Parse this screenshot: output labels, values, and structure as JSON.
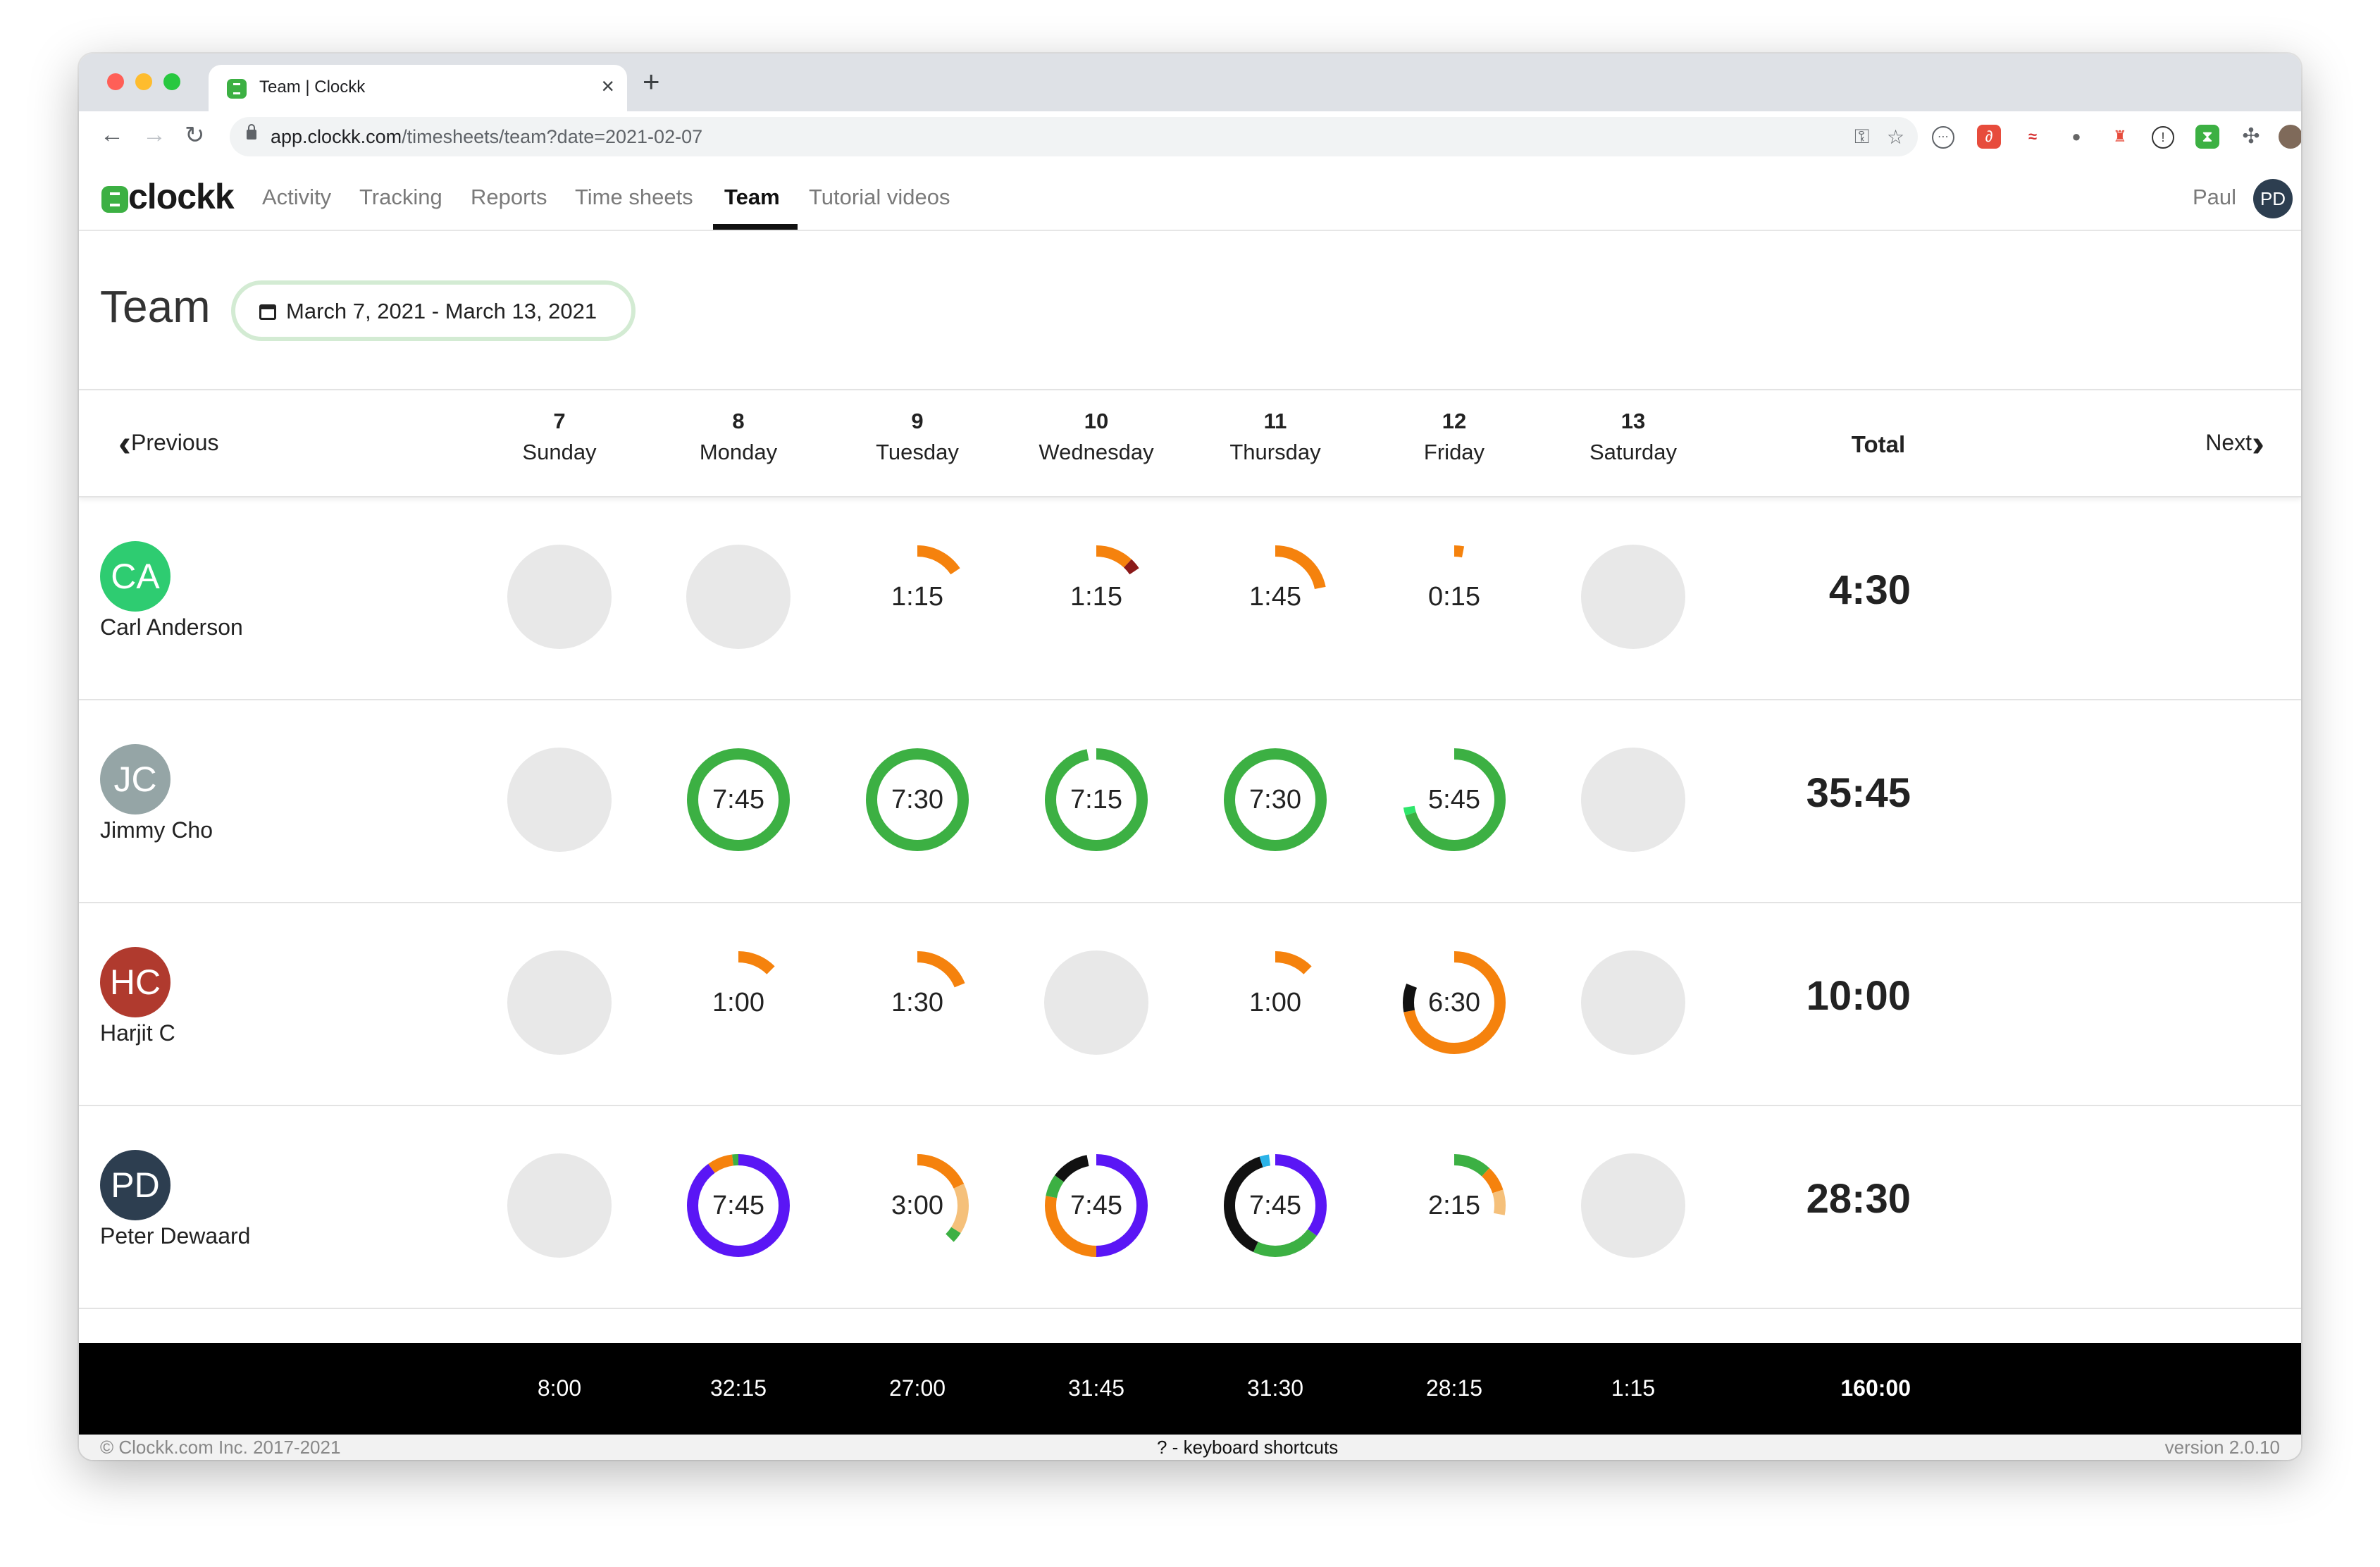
{
  "browser": {
    "tab_title": "Team | Clockk",
    "tab_close": "×",
    "new_tab": "+",
    "url_host": "app.clockk.com",
    "url_path": "/timesheets/team?date=2021-02-07"
  },
  "nav": {
    "logo_text": "clockk",
    "items": [
      "Activity",
      "Tracking",
      "Reports",
      "Time sheets",
      "Team",
      "Tutorial videos"
    ],
    "active": "Team",
    "user_name": "Paul",
    "user_initials": "PD"
  },
  "page": {
    "title": "Team",
    "date_range": "March 7, 2021 - March 13, 2021"
  },
  "days_header": {
    "prev": "Previous",
    "next": "Next",
    "total": "Total",
    "days": [
      {
        "num": "7",
        "name": "Sunday"
      },
      {
        "num": "8",
        "name": "Monday"
      },
      {
        "num": "9",
        "name": "Tuesday"
      },
      {
        "num": "10",
        "name": "Wednesday"
      },
      {
        "num": "11",
        "name": "Thursday"
      },
      {
        "num": "12",
        "name": "Friday"
      },
      {
        "num": "13",
        "name": "Saturday"
      }
    ]
  },
  "members": [
    {
      "initials": "CA",
      "name": "Carl Anderson",
      "avatar_color": "#2ecc71",
      "total": "4:30",
      "days": [
        {
          "label": "",
          "segments": []
        },
        {
          "label": "",
          "segments": []
        },
        {
          "label": "1:15",
          "segments": [
            {
              "color": "#f5820d",
              "fraction": 0.156
            }
          ]
        },
        {
          "label": "1:15",
          "segments": [
            {
              "color": "#f5820d",
              "fraction": 0.12
            },
            {
              "color": "#8b1a1a",
              "fraction": 0.036
            }
          ]
        },
        {
          "label": "1:45",
          "segments": [
            {
              "color": "#f5820d",
              "fraction": 0.219
            }
          ]
        },
        {
          "label": "0:15",
          "segments": [
            {
              "color": "#f5820d",
              "fraction": 0.031
            }
          ]
        },
        {
          "label": "",
          "segments": []
        }
      ]
    },
    {
      "initials": "JC",
      "name": "Jimmy Cho",
      "avatar_color": "#95a5a6",
      "total": "35:45",
      "days": [
        {
          "label": "",
          "segments": []
        },
        {
          "label": "7:45",
          "segments": [
            {
              "color": "#3cb043",
              "fraction": 1.0
            }
          ]
        },
        {
          "label": "7:30",
          "segments": [
            {
              "color": "#3cb043",
              "fraction": 1.0
            }
          ]
        },
        {
          "label": "7:15",
          "segments": [
            {
              "color": "#3cb043",
              "fraction": 0.97
            }
          ]
        },
        {
          "label": "7:30",
          "segments": [
            {
              "color": "#3cb043",
              "fraction": 1.0
            }
          ]
        },
        {
          "label": "5:45",
          "segments": [
            {
              "color": "#3cb043",
              "fraction": 0.7
            },
            {
              "color": "#2ee66b",
              "fraction": 0.025
            }
          ]
        },
        {
          "label": "",
          "segments": []
        }
      ]
    },
    {
      "initials": "HC",
      "name": "Harjit C",
      "avatar_color": "#b03a2e",
      "total": "10:00",
      "days": [
        {
          "label": "",
          "segments": []
        },
        {
          "label": "1:00",
          "segments": [
            {
              "color": "#f5820d",
              "fraction": 0.125
            }
          ]
        },
        {
          "label": "1:30",
          "segments": [
            {
              "color": "#f5820d",
              "fraction": 0.188
            }
          ]
        },
        {
          "label": "",
          "segments": []
        },
        {
          "label": "1:00",
          "segments": [
            {
              "color": "#f5820d",
              "fraction": 0.125
            }
          ]
        },
        {
          "label": "6:30",
          "segments": [
            {
              "color": "#f5820d",
              "fraction": 0.72
            },
            {
              "color": "#111111",
              "fraction": 0.09
            }
          ]
        },
        {
          "label": "",
          "segments": []
        }
      ]
    },
    {
      "initials": "PD",
      "name": "Peter Dewaard",
      "avatar_color": "#2d3e50",
      "total": "28:30",
      "days": [
        {
          "label": "",
          "segments": []
        },
        {
          "label": "7:45",
          "segments": [
            {
              "color": "#5a16f5",
              "fraction": 0.9
            },
            {
              "color": "#f5820d",
              "fraction": 0.08
            },
            {
              "color": "#3cb043",
              "fraction": 0.02
            }
          ]
        },
        {
          "label": "3:00",
          "segments": [
            {
              "color": "#f5820d",
              "fraction": 0.18
            },
            {
              "color": "#f5c07a",
              "fraction": 0.16
            },
            {
              "color": "#3cb043",
              "fraction": 0.035
            }
          ]
        },
        {
          "label": "7:45",
          "segments": [
            {
              "color": "#5a16f5",
              "fraction": 0.5
            },
            {
              "color": "#f5820d",
              "fraction": 0.28
            },
            {
              "color": "#3cb043",
              "fraction": 0.07
            },
            {
              "color": "#111111",
              "fraction": 0.12
            }
          ]
        },
        {
          "label": "7:45",
          "segments": [
            {
              "color": "#5a16f5",
              "fraction": 0.35
            },
            {
              "color": "#3cb043",
              "fraction": 0.22
            },
            {
              "color": "#111111",
              "fraction": 0.38
            },
            {
              "color": "#2bb3e8",
              "fraction": 0.03
            }
          ]
        },
        {
          "label": "2:15",
          "segments": [
            {
              "color": "#3cb043",
              "fraction": 0.12
            },
            {
              "color": "#f5820d",
              "fraction": 0.08
            },
            {
              "color": "#f5c07a",
              "fraction": 0.08
            }
          ]
        },
        {
          "label": "",
          "segments": []
        }
      ]
    }
  ],
  "footer_totals": {
    "days": [
      "8:00",
      "32:15",
      "27:00",
      "31:45",
      "31:30",
      "28:15",
      "1:15"
    ],
    "total": "160:00"
  },
  "statusbar": {
    "copyright": "© Clockk.com Inc. 2017-2021",
    "shortcuts": "? - keyboard shortcuts",
    "version": "version 2.0.10"
  }
}
